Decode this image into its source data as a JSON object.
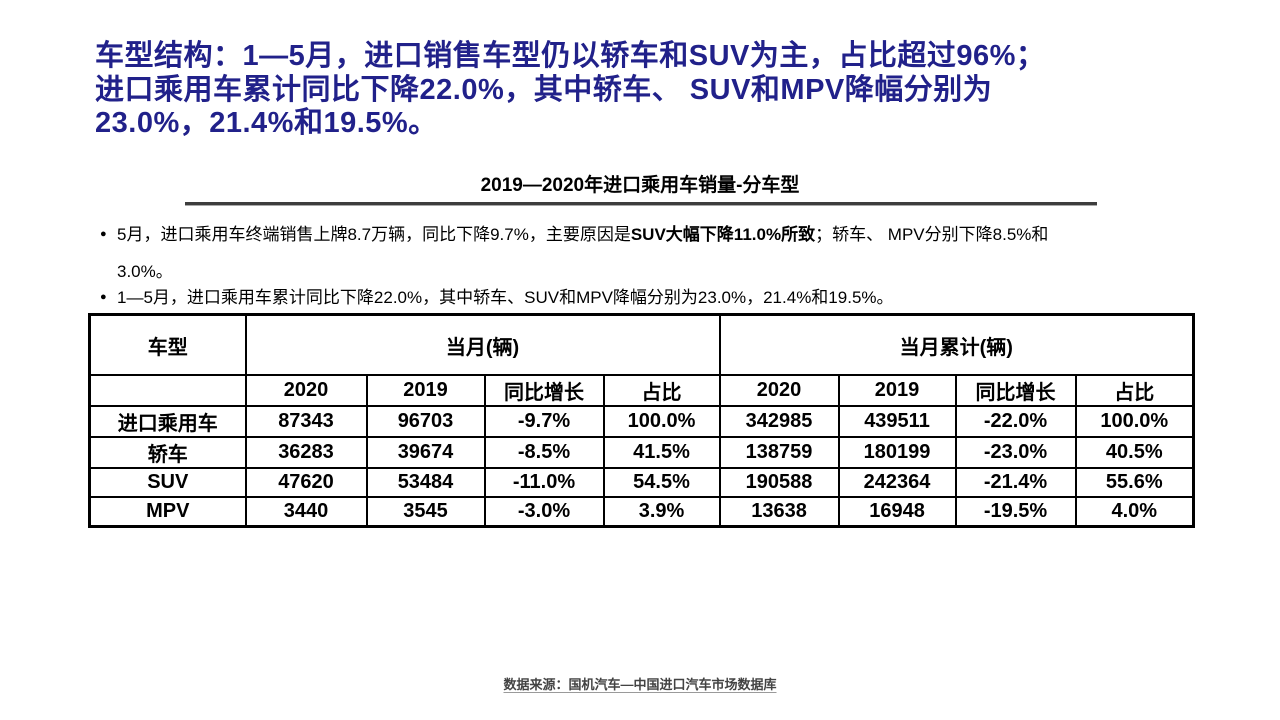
{
  "colors": {
    "headline": "#21218A",
    "body_text": "#000000",
    "table_border": "#000000",
    "rule": "#3d3d3d",
    "footer_text": "#434343"
  },
  "headline": {
    "lines": [
      "车型结构：1—5月，进口销售车型仍以轿车和SUV为主，占比超过96%；",
      "进口乘用车累计同比下降22.0%，其中轿车、 SUV和MPV降幅分别为",
      "23.0%，21.4%和19.5%。"
    ]
  },
  "section": {
    "table_title": "2019—2020年进口乘用车销量-分车型"
  },
  "bullets": [
    {
      "marker": "●",
      "lines": [
        [
          {
            "t": "5月，进口乘用车终端销售上牌8.7万辆，同比下降9.7%，主要原因是",
            "b": false
          },
          {
            "t": "SUV大幅下降11.0%所致",
            "b": true
          },
          {
            "t": "；轿车、 MPV分别下降8.5%和",
            "b": false
          }
        ],
        [
          {
            "t": "3.0%。",
            "b": false
          }
        ]
      ]
    },
    {
      "marker": "●",
      "lines": [
        [
          {
            "t": "1—5月，进口乘用车累计同比下降22.0%，其中轿车、SUV和MPV降幅分别为23.0%，21.4%和19.5%。",
            "b": false
          }
        ]
      ]
    }
  ],
  "table": {
    "group_headers": {
      "col0": "车型",
      "current_month": "当月(辆)",
      "cumulative": "当月累计(辆)"
    },
    "sub_headers": [
      "",
      "2020",
      "2019",
      "同比增长",
      "占比",
      "2020",
      "2019",
      "同比增长",
      "占比"
    ],
    "rows": [
      {
        "cells": [
          "进口乘用车",
          "87343",
          "96703",
          "-9.7%",
          "100.0%",
          "342985",
          "439511",
          "-22.0%",
          "100.0%"
        ]
      },
      {
        "cells": [
          "轿车",
          "36283",
          "39674",
          "-8.5%",
          "41.5%",
          "138759",
          "180199",
          "-23.0%",
          "40.5%"
        ]
      },
      {
        "cells": [
          "SUV",
          "47620",
          "53484",
          "-11.0%",
          "54.5%",
          "190588",
          "242364",
          "-21.4%",
          "55.6%"
        ]
      },
      {
        "cells": [
          "MPV",
          "3440",
          "3545",
          "-3.0%",
          "3.9%",
          "13638",
          "16948",
          "-19.5%",
          "4.0%"
        ]
      }
    ]
  },
  "footer": {
    "source": "数据来源：国机汽车—中国进口汽车市场数据库"
  }
}
